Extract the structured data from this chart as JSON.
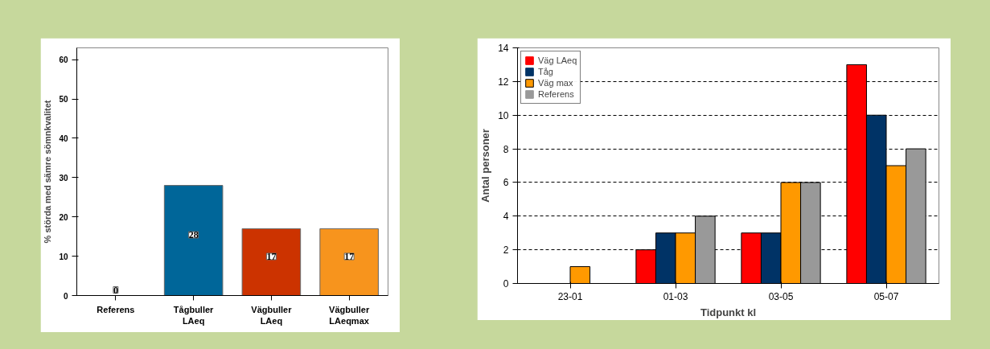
{
  "chart_data": [
    {
      "type": "bar",
      "ylabel": "% störda med sämre sömnkvalitet",
      "categories": [
        "Referens",
        "Tågbuller LAeq",
        "Vägbuller LAeq",
        "Vägbuller LAeqmax"
      ],
      "values": [
        0,
        28,
        17,
        17
      ],
      "colors": [
        "#b0b0b0",
        "#006699",
        "#cc3300",
        "#f7941d"
      ],
      "ylim": [
        0,
        63
      ],
      "yticks": [
        0,
        10,
        20,
        30,
        40,
        50,
        60
      ],
      "data_labels": true,
      "grid": false
    },
    {
      "type": "bar",
      "xlabel": "Tidpunkt kl",
      "ylabel": "Antal personer",
      "categories": [
        "23-01",
        "01-03",
        "03-05",
        "05-07"
      ],
      "ylim": [
        0,
        14
      ],
      "yticks": [
        0,
        2,
        4,
        6,
        8,
        10,
        12,
        14
      ],
      "grid": "y",
      "legend": "top left",
      "series": [
        {
          "name": "Väg LAeq",
          "color": "#ff0000",
          "values": [
            0,
            2,
            3,
            13
          ]
        },
        {
          "name": "Tåg",
          "color": "#003366",
          "values": [
            0,
            3,
            3,
            10
          ]
        },
        {
          "name": "Väg max",
          "color": "#ff9900",
          "values": [
            1,
            3,
            6,
            7
          ]
        },
        {
          "name": "Referens",
          "color": "#999999",
          "values": [
            0,
            4,
            6,
            8
          ]
        }
      ]
    }
  ]
}
